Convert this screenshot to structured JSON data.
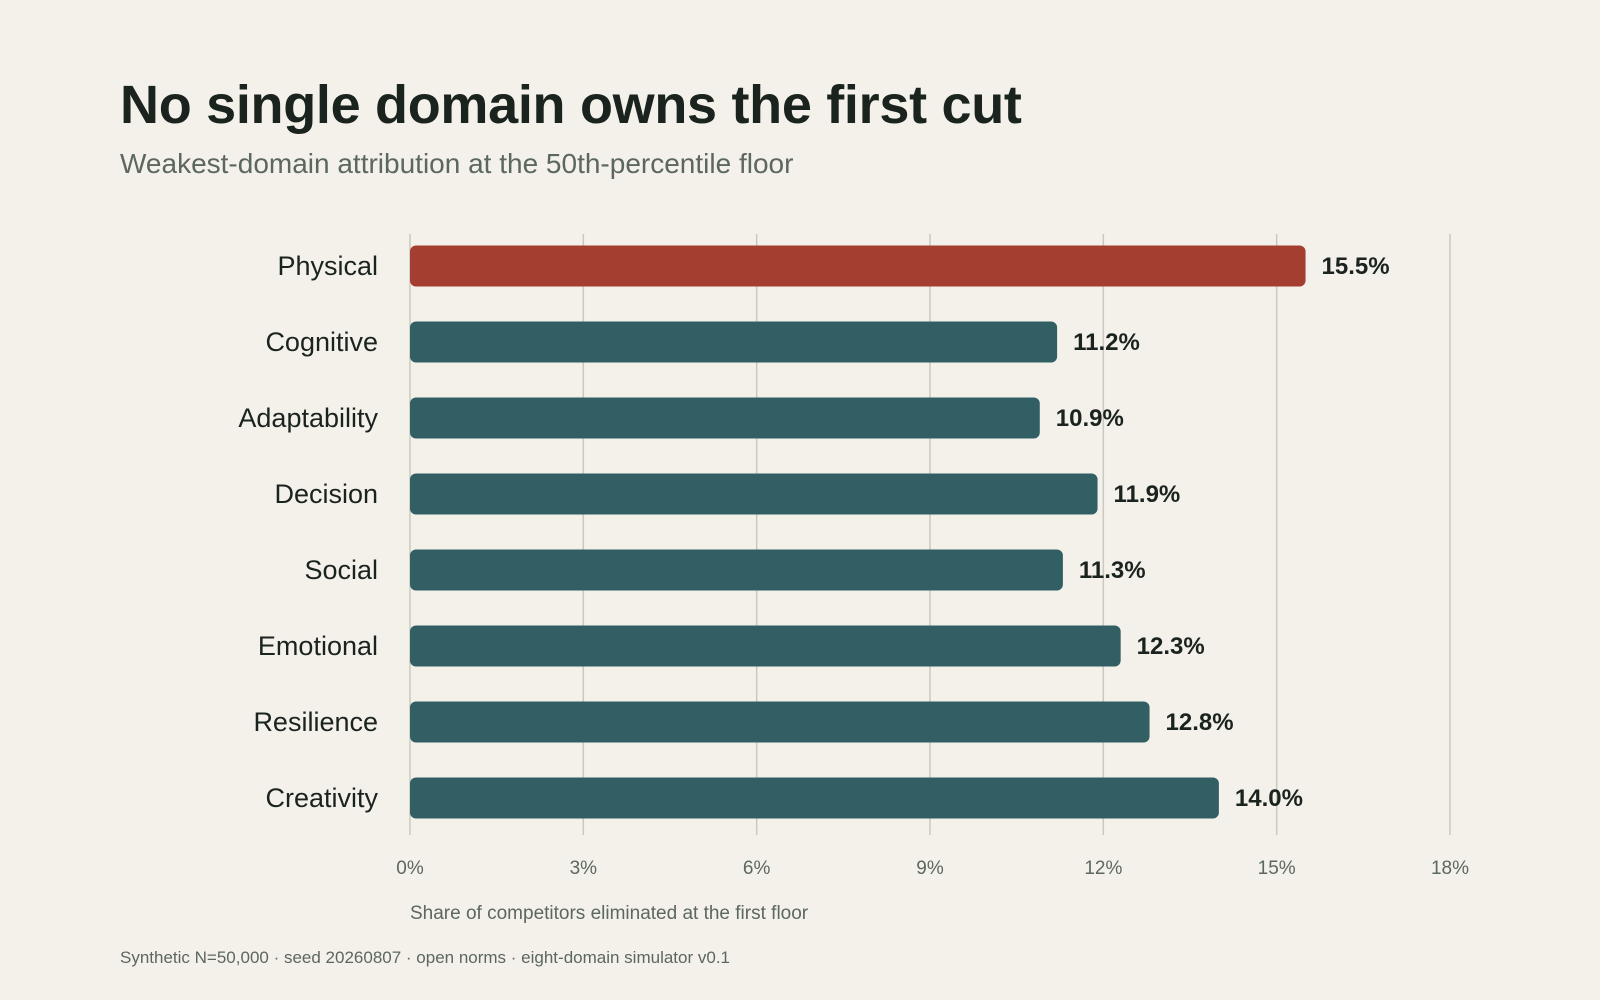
{
  "chart_data": {
    "type": "bar",
    "orientation": "horizontal",
    "title": "No single domain owns the first cut",
    "subtitle": "Weakest-domain attribution at the 50th-percentile floor",
    "xlabel": "Share of competitors eliminated at the first floor",
    "ylabel": "",
    "xlim": [
      0,
      18
    ],
    "xticks": [
      0,
      3,
      6,
      9,
      12,
      15,
      18
    ],
    "tick_suffix": "%",
    "grid": "vertical",
    "legend": "none",
    "categories": [
      "Physical",
      "Cognitive",
      "Adaptability",
      "Decision",
      "Social",
      "Emotional",
      "Resilience",
      "Creativity"
    ],
    "values": [
      15.5,
      11.2,
      10.9,
      11.9,
      11.3,
      12.3,
      12.8,
      14.0
    ],
    "value_labels": [
      "15.5%",
      "11.2%",
      "10.9%",
      "11.9%",
      "11.3%",
      "12.3%",
      "12.8%",
      "14.0%"
    ],
    "highlight_category": "Physical",
    "colors": {
      "highlight": "#a33e31",
      "default": "#325f63",
      "grid": "#c9c9c0",
      "background": "#f3f1ea"
    },
    "footer": "Synthetic N=50,000 · seed 20260807 · open norms · eight-domain simulator v0.1"
  }
}
